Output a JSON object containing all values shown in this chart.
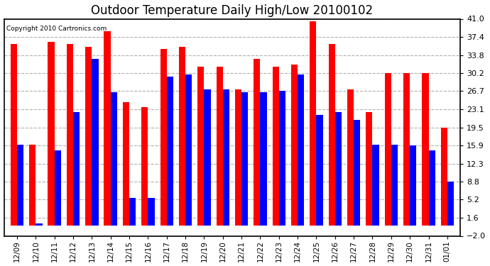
{
  "title": "Outdoor Temperature Daily High/Low 20100102",
  "copyright": "Copyright 2010 Cartronics.com",
  "dates": [
    "12/09",
    "12/10",
    "12/11",
    "12/12",
    "12/13",
    "12/14",
    "12/15",
    "12/16",
    "12/17",
    "12/18",
    "12/19",
    "12/20",
    "12/21",
    "12/22",
    "12/23",
    "12/24",
    "12/25",
    "12/26",
    "12/27",
    "12/28",
    "12/29",
    "12/30",
    "12/31",
    "01/01"
  ],
  "highs": [
    36.0,
    16.0,
    36.5,
    36.0,
    35.5,
    38.5,
    24.5,
    23.5,
    35.0,
    35.5,
    31.5,
    31.5,
    27.0,
    33.0,
    31.5,
    32.0,
    40.5,
    36.0,
    27.0,
    22.5,
    30.2,
    30.2,
    30.2,
    19.5
  ],
  "lows": [
    16.0,
    0.5,
    15.0,
    22.5,
    33.0,
    26.5,
    5.5,
    5.5,
    29.5,
    30.0,
    27.0,
    27.0,
    26.5,
    26.5,
    26.7,
    30.0,
    22.0,
    22.5,
    21.0,
    16.0,
    16.0,
    15.9,
    15.0,
    8.8
  ],
  "high_color": "#ff0000",
  "low_color": "#0000ff",
  "bg_color": "#ffffff",
  "yticks": [
    -2.0,
    1.6,
    5.2,
    8.8,
    12.3,
    15.9,
    19.5,
    23.1,
    26.7,
    30.2,
    33.8,
    37.4,
    41.0
  ],
  "ymin": -2.0,
  "ymax": 41.0,
  "grid_color": "#b0b0b0",
  "title_fontsize": 12
}
